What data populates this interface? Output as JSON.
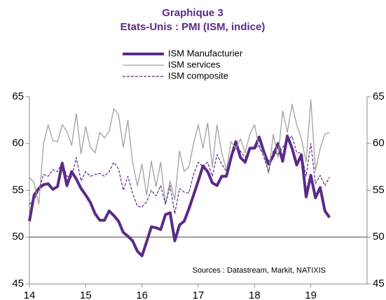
{
  "chart_data": {
    "type": "line",
    "title": "Graphique 3",
    "subtitle": "Etats-Unis : PMI (ISM, indice)",
    "annotation": "Sources  : Datastream,  Markit, NATIXIS",
    "x": [
      14,
      14.083,
      14.167,
      14.25,
      14.333,
      14.417,
      14.5,
      14.583,
      14.667,
      14.75,
      14.833,
      14.917,
      15,
      15.083,
      15.167,
      15.25,
      15.333,
      15.417,
      15.5,
      15.583,
      15.667,
      15.75,
      15.833,
      15.917,
      16,
      16.083,
      16.167,
      16.25,
      16.333,
      16.417,
      16.5,
      16.583,
      16.667,
      16.75,
      16.833,
      16.917,
      17,
      17.083,
      17.167,
      17.25,
      17.333,
      17.417,
      17.5,
      17.583,
      17.667,
      17.75,
      17.833,
      17.917,
      18,
      18.083,
      18.167,
      18.25,
      18.333,
      18.417,
      18.5,
      18.583,
      18.667,
      18.75,
      18.833,
      18.917,
      19,
      19.083,
      19.167,
      19.25,
      19.333
    ],
    "series": [
      {
        "name": "ISM Manufacturier",
        "color": "#5b2a86",
        "width": 4,
        "dash": false,
        "values": [
          51.7,
          54.5,
          55.2,
          55.6,
          55.7,
          55.1,
          55.4,
          57.9,
          55.5,
          57.0,
          56.2,
          55.2,
          54.5,
          53.7,
          52.5,
          51.8,
          51.8,
          52.8,
          52.3,
          51.7,
          50.5,
          50.1,
          49.6,
          48.5,
          48.0,
          49.5,
          51.1,
          51.0,
          50.8,
          52.4,
          52.6,
          49.6,
          51.3,
          51.7,
          53.0,
          54.5,
          56.0,
          57.6,
          57.0,
          55.8,
          55.5,
          56.5,
          56.5,
          58.5,
          60.2,
          58.5,
          58.0,
          59.5,
          59.5,
          60.7,
          59.1,
          57.8,
          58.7,
          60.0,
          58.1,
          60.8,
          59.5,
          57.7,
          58.8,
          54.3,
          56.6,
          54.2,
          55.3,
          52.8,
          52.1
        ]
      },
      {
        "name": "ISM services",
        "color": "#a0a0a0",
        "width": 1.3,
        "dash": false,
        "values": [
          56.4,
          55.8,
          53.5,
          60.0,
          62.0,
          60.3,
          60.2,
          62.0,
          61.3,
          59.8,
          63.2,
          58.9,
          61.8,
          59.6,
          59.0,
          61.2,
          60.6,
          61.3,
          63.7,
          63.1,
          59.6,
          62.5,
          58.0,
          55.5,
          57.8,
          54.5,
          58.1,
          55.4,
          58.0,
          53.5,
          56.0,
          54.0,
          59.2,
          57.0,
          57.5,
          60.0,
          62.0,
          59.5,
          62.2,
          57.5,
          62.0,
          59.0,
          57.2,
          60.2,
          59.5,
          60.5,
          59.0,
          61.0,
          62.0,
          59.5,
          58.8,
          56.8,
          61.0,
          58.5,
          63.5,
          61.2,
          64.2,
          62.0,
          60.5,
          58.0,
          64.7,
          57.1,
          59.5,
          61.0,
          61.2
        ]
      },
      {
        "name": "ISM composite",
        "color": "#5b2a86",
        "width": 1.2,
        "dash": true,
        "values": [
          53.5,
          54.0,
          55.0,
          56.7,
          56.5,
          57.2,
          57.0,
          58.0,
          56.5,
          56.4,
          58.5,
          56.0,
          57.0,
          56.5,
          56.7,
          56.8,
          56.5,
          57.0,
          58.0,
          57.3,
          55.0,
          56.5,
          54.7,
          53.3,
          53.2,
          53.8,
          55.0,
          54.4,
          55.5,
          53.5,
          55.5,
          52.5,
          55.2,
          54.8,
          54.7,
          56.7,
          58.0,
          57.5,
          58.0,
          56.5,
          58.8,
          57.8,
          57.0,
          58.6,
          59.5,
          59.2,
          58.5,
          59.5,
          59.5,
          59.8,
          58.5,
          57.0,
          59.2,
          58.8,
          59.6,
          60.2,
          60.8,
          59.0,
          59.0,
          56.5,
          60.0,
          55.7,
          56.6,
          55.5,
          56.4
        ]
      }
    ],
    "xlim": [
      14,
      20
    ],
    "xticks": [
      14,
      15,
      16,
      17,
      18,
      19
    ],
    "ylim": [
      45,
      65
    ],
    "yticks": [
      45,
      50,
      55,
      60,
      65
    ],
    "y2lim": [
      45,
      65
    ],
    "y2ticks": [
      45,
      50,
      55,
      60,
      65
    ],
    "x_axis_at": 50,
    "legend": "top"
  }
}
